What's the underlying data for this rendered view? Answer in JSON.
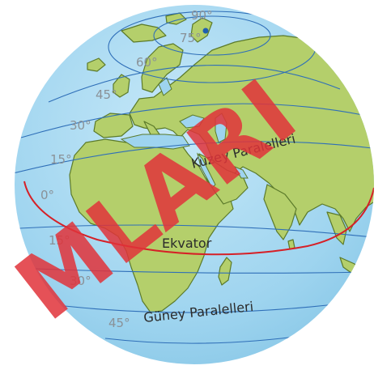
{
  "degree_labels": {
    "n90": "90°",
    "n75": "75°",
    "n60": "60°",
    "n45": "45°",
    "n30": "30°",
    "n15": "15°",
    "eq0": "0°",
    "s15": "15°",
    "s30": "30°",
    "s45": "45°"
  },
  "region_labels": {
    "north": "Kuzey Paralelleri",
    "equator": "Ekvator",
    "south": "Güney Paralelleri"
  },
  "watermark": "MLARI",
  "colors": {
    "ocean": "#9ed4ef",
    "land": "#b4cf6b",
    "land_edge": "#5b7a2a",
    "parallel": "#2f6fb8",
    "equator": "#d62027",
    "pole_dot": "#1f5fb0",
    "watermark": "#e0323a"
  }
}
